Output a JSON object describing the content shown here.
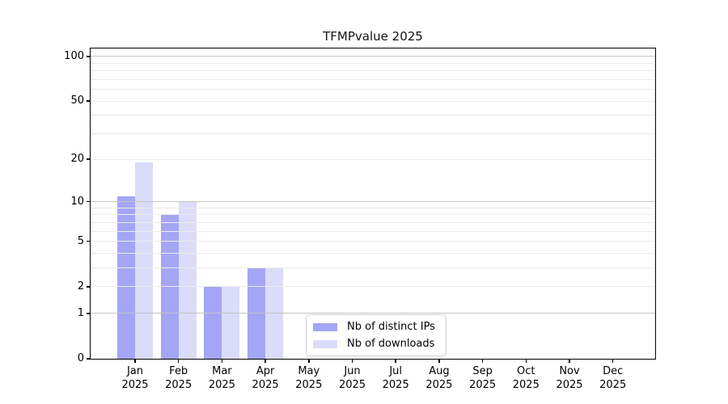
{
  "chart_data": {
    "type": "bar",
    "title": "TFMPvalue 2025",
    "categories": [
      "Jan",
      "Feb",
      "Mar",
      "Apr",
      "May",
      "Jun",
      "Jul",
      "Aug",
      "Sep",
      "Oct",
      "Nov",
      "Dec"
    ],
    "category_year": "2025",
    "series": [
      {
        "name": "Nb of distinct IPs",
        "color": "#a5a5f5",
        "values": [
          11,
          8,
          2,
          3,
          0,
          0,
          0,
          0,
          0,
          0,
          0,
          0
        ]
      },
      {
        "name": "Nb of downloads",
        "color": "#dbdbfa",
        "values": [
          19,
          10,
          2,
          3,
          0,
          0,
          0,
          0,
          0,
          0,
          0,
          0
        ]
      }
    ],
    "xlabel": "",
    "ylabel": "",
    "y_scale": "log1p",
    "ylim": [
      0,
      113
    ],
    "y_tick_labels": [
      "100",
      "50",
      "20",
      "10",
      "5",
      "2",
      "1",
      "0"
    ],
    "y_tick_values": [
      100,
      50,
      20,
      10,
      5,
      2,
      1,
      0
    ],
    "y_major_gridlines": [
      1,
      10,
      100
    ],
    "y_minor_gridlines": [
      2,
      3,
      4,
      5,
      6,
      7,
      8,
      9,
      20,
      30,
      40,
      50,
      60,
      70,
      80,
      90
    ],
    "grid": true,
    "legend_position": "lower center"
  },
  "colors": {
    "background": "#ffffff",
    "axis": "#000000",
    "grid_major": "#c3c3c3",
    "grid_minor": "#ebebeb",
    "text": "#000000"
  }
}
